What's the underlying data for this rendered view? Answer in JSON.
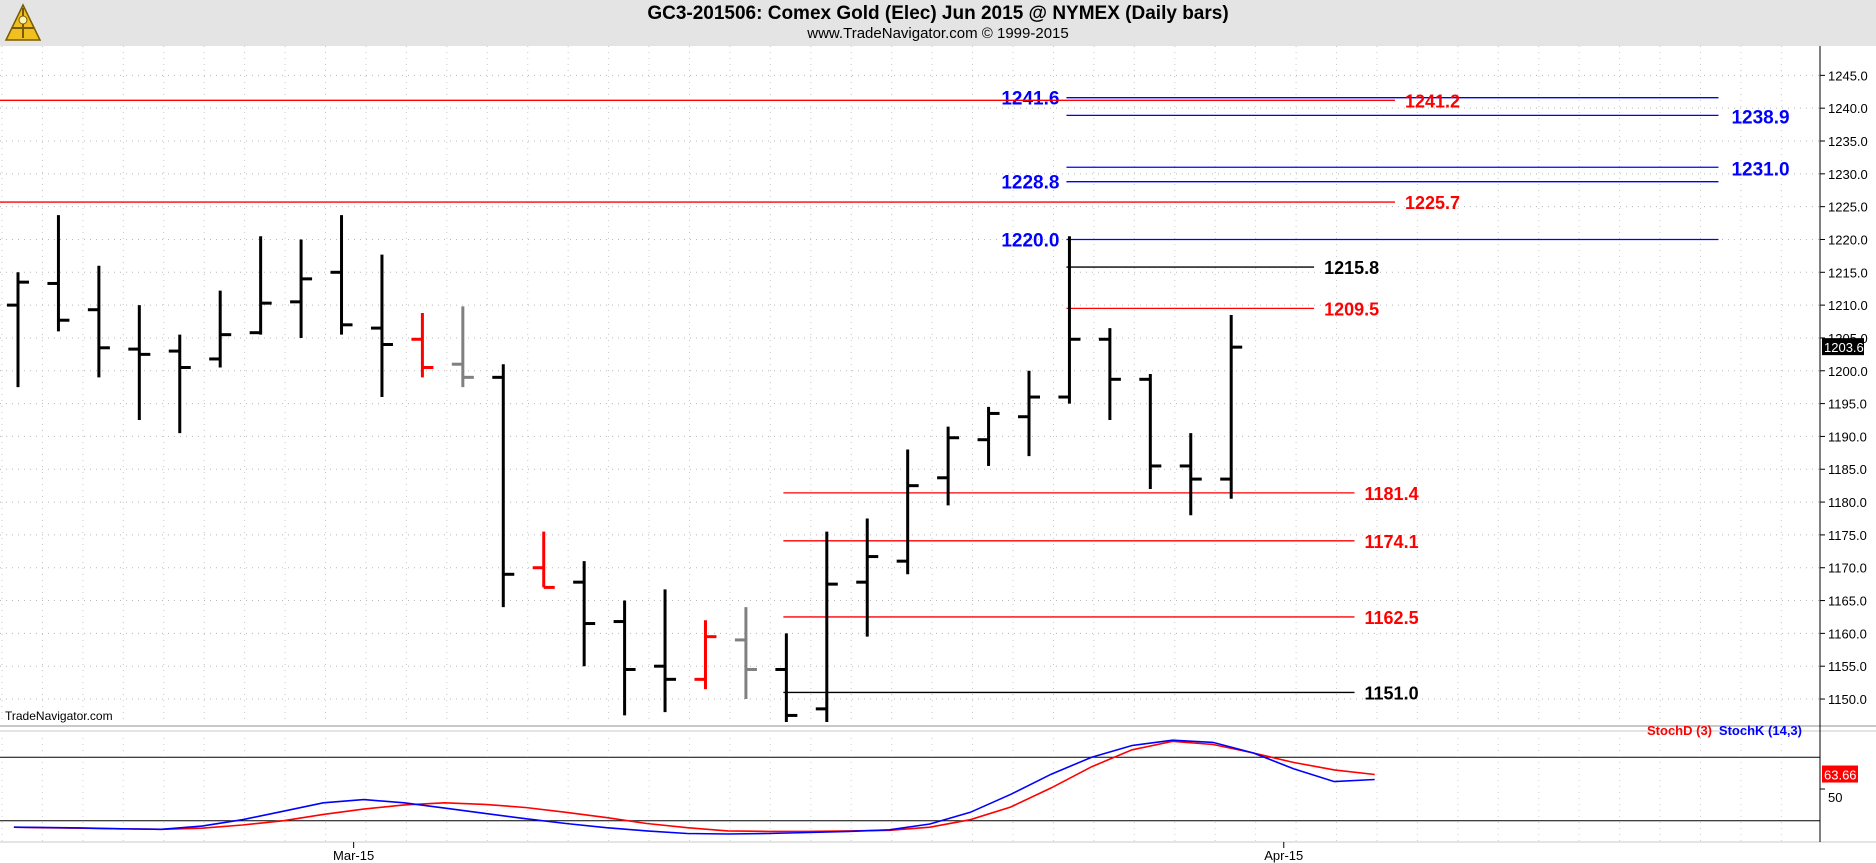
{
  "header": {
    "title": "GC3-201506:  Comex Gold (Elec) Jun 2015 @ NYMEX  (Daily bars)",
    "subtitle": "www.TradeNavigator.com © 1999-2015"
  },
  "watermark": "TradeNavigator.com",
  "colors": {
    "up_bar": "#000000",
    "down_bar": "#ff0000",
    "neutral_bar": "#808080",
    "red_level": "#ff0000",
    "blue_level": "#0000ff",
    "black_level": "#000000",
    "stoch_d": "#ff0000",
    "stoch_k": "#0000ff",
    "header_bg": "#e4e4e4"
  },
  "chart_data": [
    {
      "type": "ohlc",
      "title": "GC3-201506:  Comex Gold (Elec) Jun 2015 @ NYMEX  (Daily bars)",
      "ylim": [
        1146.5,
        1248.5
      ],
      "y_ticks": [
        "1150.0",
        "1155.0",
        "1160.0",
        "1165.0",
        "1170.0",
        "1175.0",
        "1180.0",
        "1185.0",
        "1190.0",
        "1195.0",
        "1200.0",
        "1205.0",
        "1210.0",
        "1215.0",
        "1220.0",
        "1225.0",
        "1230.0",
        "1235.0",
        "1240.0",
        "1245.0"
      ],
      "x_ticks": [
        {
          "label": "Mar-15",
          "bar": 8.3
        },
        {
          "label": "Apr-15",
          "bar": 31.3
        }
      ],
      "last_price": "1203.6",
      "bars": [
        {
          "o": 1210.0,
          "h": 1215.0,
          "l": 1197.5,
          "c": 1213.5,
          "color": "black"
        },
        {
          "o": 1213.3,
          "h": 1223.7,
          "l": 1206.0,
          "c": 1207.7,
          "color": "black"
        },
        {
          "o": 1209.3,
          "h": 1216.0,
          "l": 1199.0,
          "c": 1203.5,
          "color": "black"
        },
        {
          "o": 1203.3,
          "h": 1210.0,
          "l": 1192.5,
          "c": 1202.5,
          "color": "black"
        },
        {
          "o": 1203.0,
          "h": 1205.5,
          "l": 1190.5,
          "c": 1200.5,
          "color": "black"
        },
        {
          "o": 1201.8,
          "h": 1212.2,
          "l": 1200.5,
          "c": 1205.5,
          "color": "black"
        },
        {
          "o": 1205.8,
          "h": 1220.5,
          "l": 1205.5,
          "c": 1210.3,
          "color": "black"
        },
        {
          "o": 1210.5,
          "h": 1220.0,
          "l": 1205.0,
          "c": 1214.0,
          "color": "black"
        },
        {
          "o": 1215.0,
          "h": 1223.7,
          "l": 1205.5,
          "c": 1207.0,
          "color": "black"
        },
        {
          "o": 1206.5,
          "h": 1217.7,
          "l": 1196.0,
          "c": 1204.0,
          "color": "black"
        },
        {
          "o": 1204.8,
          "h": 1208.8,
          "l": 1199.0,
          "c": 1200.5,
          "color": "red"
        },
        {
          "o": 1201.0,
          "h": 1209.8,
          "l": 1197.5,
          "c": 1199.0,
          "color": "gray"
        },
        {
          "o": 1199.0,
          "h": 1201.0,
          "l": 1164.0,
          "c": 1169.0,
          "color": "black"
        },
        {
          "o": 1170.0,
          "h": 1175.5,
          "l": 1167.0,
          "c": 1167.0,
          "color": "red"
        },
        {
          "o": 1167.8,
          "h": 1171.0,
          "l": 1155.0,
          "c": 1161.5,
          "color": "black"
        },
        {
          "o": 1161.8,
          "h": 1165.0,
          "l": 1147.5,
          "c": 1154.5,
          "color": "black"
        },
        {
          "o": 1155.0,
          "h": 1166.7,
          "l": 1148.0,
          "c": 1153.0,
          "color": "black"
        },
        {
          "o": 1153.0,
          "h": 1162.0,
          "l": 1151.5,
          "c": 1159.5,
          "color": "red"
        },
        {
          "o": 1159.0,
          "h": 1164.0,
          "l": 1150.0,
          "c": 1154.5,
          "color": "gray"
        },
        {
          "o": 1154.5,
          "h": 1160.0,
          "l": 1146.5,
          "c": 1147.5,
          "color": "black"
        },
        {
          "o": 1148.5,
          "h": 1175.5,
          "l": 1146.5,
          "c": 1167.5,
          "color": "black"
        },
        {
          "o": 1167.8,
          "h": 1177.5,
          "l": 1159.5,
          "c": 1171.7,
          "color": "black"
        },
        {
          "o": 1171.0,
          "h": 1188.0,
          "l": 1169.0,
          "c": 1182.5,
          "color": "black"
        },
        {
          "o": 1183.7,
          "h": 1191.5,
          "l": 1179.5,
          "c": 1189.8,
          "color": "black"
        },
        {
          "o": 1189.5,
          "h": 1194.5,
          "l": 1185.5,
          "c": 1193.5,
          "color": "black"
        },
        {
          "o": 1193.0,
          "h": 1200.0,
          "l": 1187.0,
          "c": 1196.0,
          "color": "black"
        },
        {
          "o": 1196.0,
          "h": 1220.5,
          "l": 1195.0,
          "c": 1204.8,
          "color": "black"
        },
        {
          "o": 1204.8,
          "h": 1206.5,
          "l": 1192.5,
          "c": 1198.7,
          "color": "black"
        },
        {
          "o": 1198.7,
          "h": 1199.5,
          "l": 1182.0,
          "c": 1185.5,
          "color": "black"
        },
        {
          "o": 1185.5,
          "h": 1190.5,
          "l": 1178.0,
          "c": 1183.5,
          "color": "black"
        },
        {
          "o": 1183.5,
          "h": 1208.5,
          "l": 1180.5,
          "c": 1203.6,
          "color": "black"
        }
      ],
      "levels": [
        {
          "value": 1241.6,
          "label": "1241.6",
          "color": "blue",
          "from_bar": 26.0,
          "to_bar": 42.0,
          "label_side": "left"
        },
        {
          "value": 1241.2,
          "label": "1241.2",
          "color": "red",
          "from_bar": -1.0,
          "to_bar": 34.0,
          "label_side": "right"
        },
        {
          "value": 1238.9,
          "label": "1238.9",
          "color": "blue",
          "from_bar": 26.0,
          "to_bar": 42.0,
          "label_side": "far"
        },
        {
          "value": 1231.0,
          "label": "1231.0",
          "color": "blue",
          "from_bar": 26.0,
          "to_bar": 42.0,
          "label_side": "far"
        },
        {
          "value": 1228.8,
          "label": "1228.8",
          "color": "blue",
          "from_bar": 26.0,
          "to_bar": 42.0,
          "label_side": "left"
        },
        {
          "value": 1225.7,
          "label": "1225.7",
          "color": "red",
          "from_bar": -1.0,
          "to_bar": 34.0,
          "label_side": "right"
        },
        {
          "value": 1220.0,
          "label": "1220.0",
          "color": "blue",
          "from_bar": 26.0,
          "to_bar": 42.0,
          "label_side": "left"
        },
        {
          "value": 1215.8,
          "label": "1215.8",
          "color": "black",
          "from_bar": 26.0,
          "to_bar": 32.0,
          "label_side": "right"
        },
        {
          "value": 1209.5,
          "label": "1209.5",
          "color": "red",
          "from_bar": 26.0,
          "to_bar": 32.0,
          "label_side": "right"
        },
        {
          "value": 1181.4,
          "label": "1181.4",
          "color": "red",
          "from_bar": 19.0,
          "to_bar": 33.0,
          "label_side": "right"
        },
        {
          "value": 1174.1,
          "label": "1174.1",
          "color": "red",
          "from_bar": 19.0,
          "to_bar": 33.0,
          "label_side": "right"
        },
        {
          "value": 1162.5,
          "label": "1162.5",
          "color": "red",
          "from_bar": 19.0,
          "to_bar": 33.0,
          "label_side": "right"
        },
        {
          "value": 1151.0,
          "label": "1151.0",
          "color": "black",
          "from_bar": 19.0,
          "to_bar": 33.0,
          "label_side": "right"
        }
      ]
    },
    {
      "type": "line",
      "title": "StochD (3)  StochK (14,3)",
      "ylim": [
        0,
        100
      ],
      "y_ticks": [
        "50"
      ],
      "ref_lines": [
        20,
        80
      ],
      "last_value": "63.66",
      "series": [
        {
          "name": "StochD (3)",
          "color": "red",
          "values": [
            14,
            13.5,
            13,
            12.5,
            12,
            13,
            16,
            20,
            26,
            31,
            35,
            37,
            35.5,
            32.5,
            28,
            23,
            17.5,
            13.5,
            10.5,
            10,
            10,
            10.5,
            11,
            14,
            21,
            33,
            51,
            71,
            87,
            95,
            92,
            84,
            75,
            68,
            63.66
          ]
        },
        {
          "name": "StochK (14,3)",
          "color": "blue",
          "values": [
            14,
            13.8,
            13.3,
            12.5,
            12,
            15,
            21,
            29,
            37,
            40,
            37,
            32,
            27,
            22,
            17.5,
            13.5,
            10.5,
            8,
            7.5,
            8,
            9,
            10,
            11.5,
            17,
            28,
            45,
            64,
            80,
            91,
            96,
            94,
            84,
            69,
            57,
            59
          ]
        }
      ]
    }
  ]
}
